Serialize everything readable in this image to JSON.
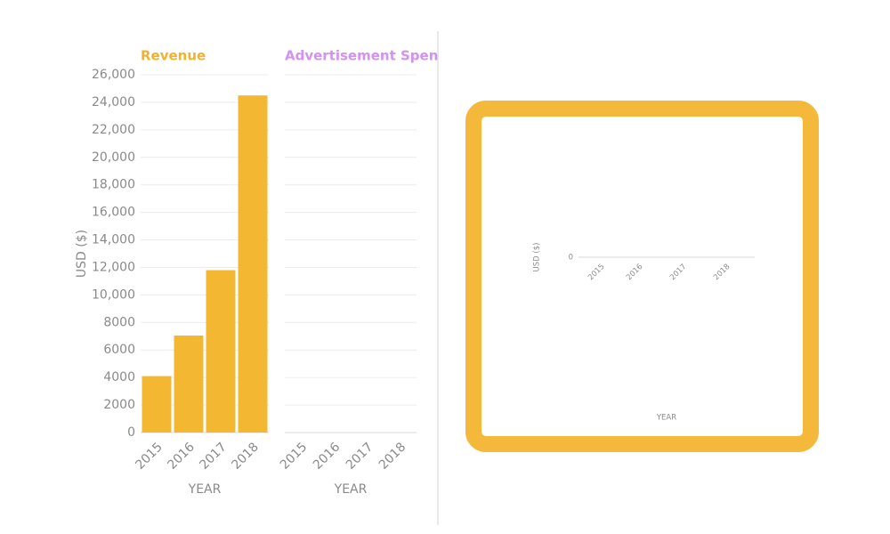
{
  "chart_data": [
    {
      "type": "bar",
      "title": "Revenue",
      "title_color": "#f1b32c",
      "color": "#f4b731",
      "categories": [
        "2015",
        "2016",
        "2017",
        "2018"
      ],
      "values": [
        4100,
        7050,
        11800,
        24500
      ],
      "ylabel": "USD ($)",
      "xlabel": "YEAR",
      "ylim": [
        0,
        26000
      ],
      "yticks": [
        0,
        2000,
        4000,
        6000,
        8000,
        {
          "value": 10000,
          "label": "10,000"
        },
        {
          "value": 12000,
          "label": "12,000"
        },
        {
          "value": 14000,
          "label": "14,000"
        },
        {
          "value": 16000,
          "label": "16,000"
        },
        {
          "value": 18000,
          "label": "18,000"
        },
        {
          "value": 20000,
          "label": "20,000"
        },
        {
          "value": 22000,
          "label": "22,000"
        },
        {
          "value": 24000,
          "label": "24,000"
        },
        {
          "value": 26000,
          "label": "26,000"
        }
      ],
      "grid": true
    },
    {
      "type": "bar",
      "title": "Advertisement Spen",
      "title_color": "#d591f2",
      "categories": [
        "2015",
        "2016",
        "2017",
        "2018"
      ],
      "xlabel": "YEAR",
      "ylim": [
        0,
        26000
      ],
      "grid": true
    },
    {
      "type": "bar",
      "categories": [
        "2015",
        "2016",
        "2017",
        "2018"
      ],
      "ylabel": "USD ($)",
      "xlabel": "YEAR",
      "yticks": [
        0
      ],
      "grid": true
    }
  ]
}
